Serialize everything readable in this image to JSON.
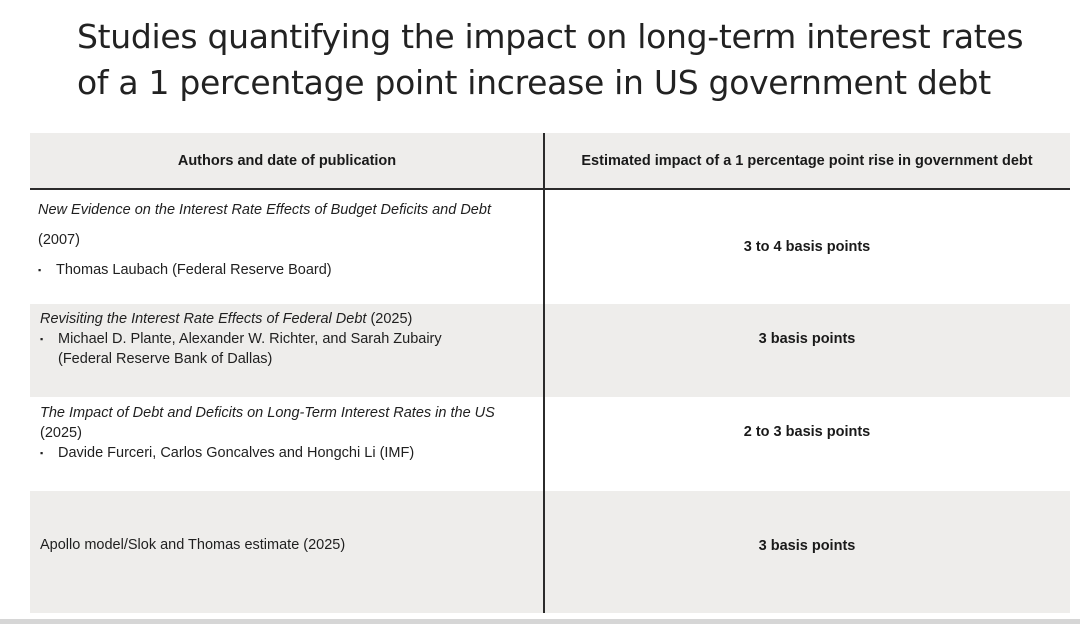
{
  "title": {
    "line1": "Studies quantifying the impact on long-term interest rates",
    "line2": "of a 1 percentage point increase in US government debt"
  },
  "table": {
    "headers": {
      "authors": "Authors and date of publication",
      "impact": "Estimated impact of a 1 percentage point rise in government debt"
    },
    "rows": [
      {
        "title": "New Evidence on the Interest Rate Effects of Budget Deficits and Debt",
        "year": "(2007)",
        "authors": "Thomas Laubach (Federal Reserve Board)",
        "impact": "3 to 4 basis points"
      },
      {
        "title": "Revisiting the Interest Rate Effects of Federal Debt",
        "year": "(2025)",
        "authors_line1": "Michael D. Plante, Alexander W. Richter, and Sarah Zubairy",
        "authors_line2": "(Federal Reserve Bank of Dallas)",
        "impact": "3 basis points"
      },
      {
        "title": "The Impact of Debt and Deficits on Long-Term Interest Rates in the US",
        "year": "(2025)",
        "authors": "Davide Furceri, Carlos Goncalves and Hongchi Li (IMF)",
        "impact": "2 to 3 basis points"
      },
      {
        "text": "Apollo model/Slok and Thomas estimate (2025)",
        "impact": "3 basis points"
      }
    ],
    "bullet_char": "▪"
  }
}
